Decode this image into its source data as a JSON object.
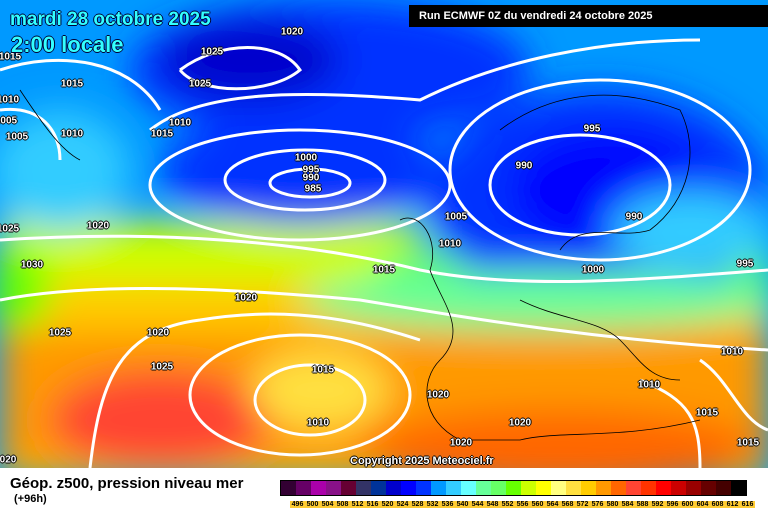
{
  "header": {
    "date": "mardi 28 octobre 2025",
    "time": "2:00 locale",
    "run": "Run ECMWF 0Z du vendredi 24 octobre 2025"
  },
  "footer": {
    "title": "Géop. z500, pression niveau mer",
    "subtitle": "(+96h)",
    "copyright": "Copyright 2025 Meteociel.fr"
  },
  "legend": {
    "labels": [
      "496",
      "500",
      "504",
      "508",
      "512",
      "516",
      "520",
      "524",
      "528",
      "532",
      "536",
      "540",
      "544",
      "548",
      "552",
      "556",
      "560",
      "564",
      "568",
      "572",
      "576",
      "580",
      "584",
      "588",
      "592",
      "596",
      "600",
      "604",
      "608",
      "612",
      "616"
    ],
    "colors": [
      "#330033",
      "#660066",
      "#aa00aa",
      "#881188",
      "#660033",
      "#333366",
      "#003399",
      "#0000cc",
      "#0000ff",
      "#0033ff",
      "#0099ff",
      "#33ccff",
      "#66ffff",
      "#66ff99",
      "#66ff66",
      "#66ff00",
      "#ccff00",
      "#ffff00",
      "#ffff80",
      "#ffe040",
      "#ffcc00",
      "#ff9900",
      "#ff6600",
      "#ff4433",
      "#ff3300",
      "#ff0000",
      "#cc0000",
      "#990000",
      "#660000",
      "#440000",
      "#000000"
    ]
  },
  "isobar_labels": [
    "1020",
    "1025",
    "1025",
    "1015",
    "1010",
    "1005",
    "1005",
    "1015",
    "1010",
    "1010",
    "1015",
    "1000",
    "995",
    "990",
    "985",
    "995",
    "990",
    "990",
    "1005",
    "1010",
    "1025",
    "1020",
    "1030",
    "1015",
    "1000",
    "995",
    "1020",
    "1025",
    "1020",
    "1025",
    "1015",
    "1010",
    "1010",
    "1020",
    "1010",
    "1020",
    "1015",
    "1020",
    "1015",
    "020"
  ]
}
